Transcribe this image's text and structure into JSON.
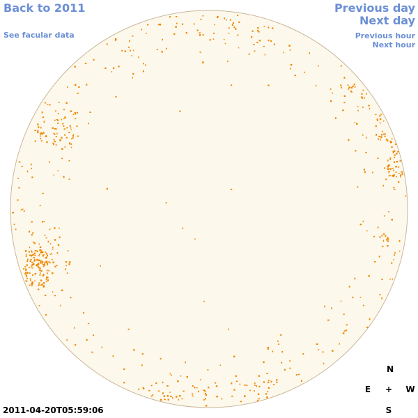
{
  "nav": {
    "back_label": "Back to 2011",
    "facular_label": "See facular data",
    "prev_day_label": "Previous day",
    "next_day_label": "Next day",
    "prev_hour_label": "Previous hour",
    "next_hour_label": "Next hour"
  },
  "timestamp": "2011-04-20T05:59:06",
  "compass": {
    "n": "N",
    "e": "E",
    "center": "+",
    "w": "W",
    "s": "S"
  },
  "colors": {
    "link": "#6b8fd6",
    "disk_fill": "#fdf8ec",
    "disk_stroke": "#c9b79a",
    "facula": "#ee8800"
  }
}
